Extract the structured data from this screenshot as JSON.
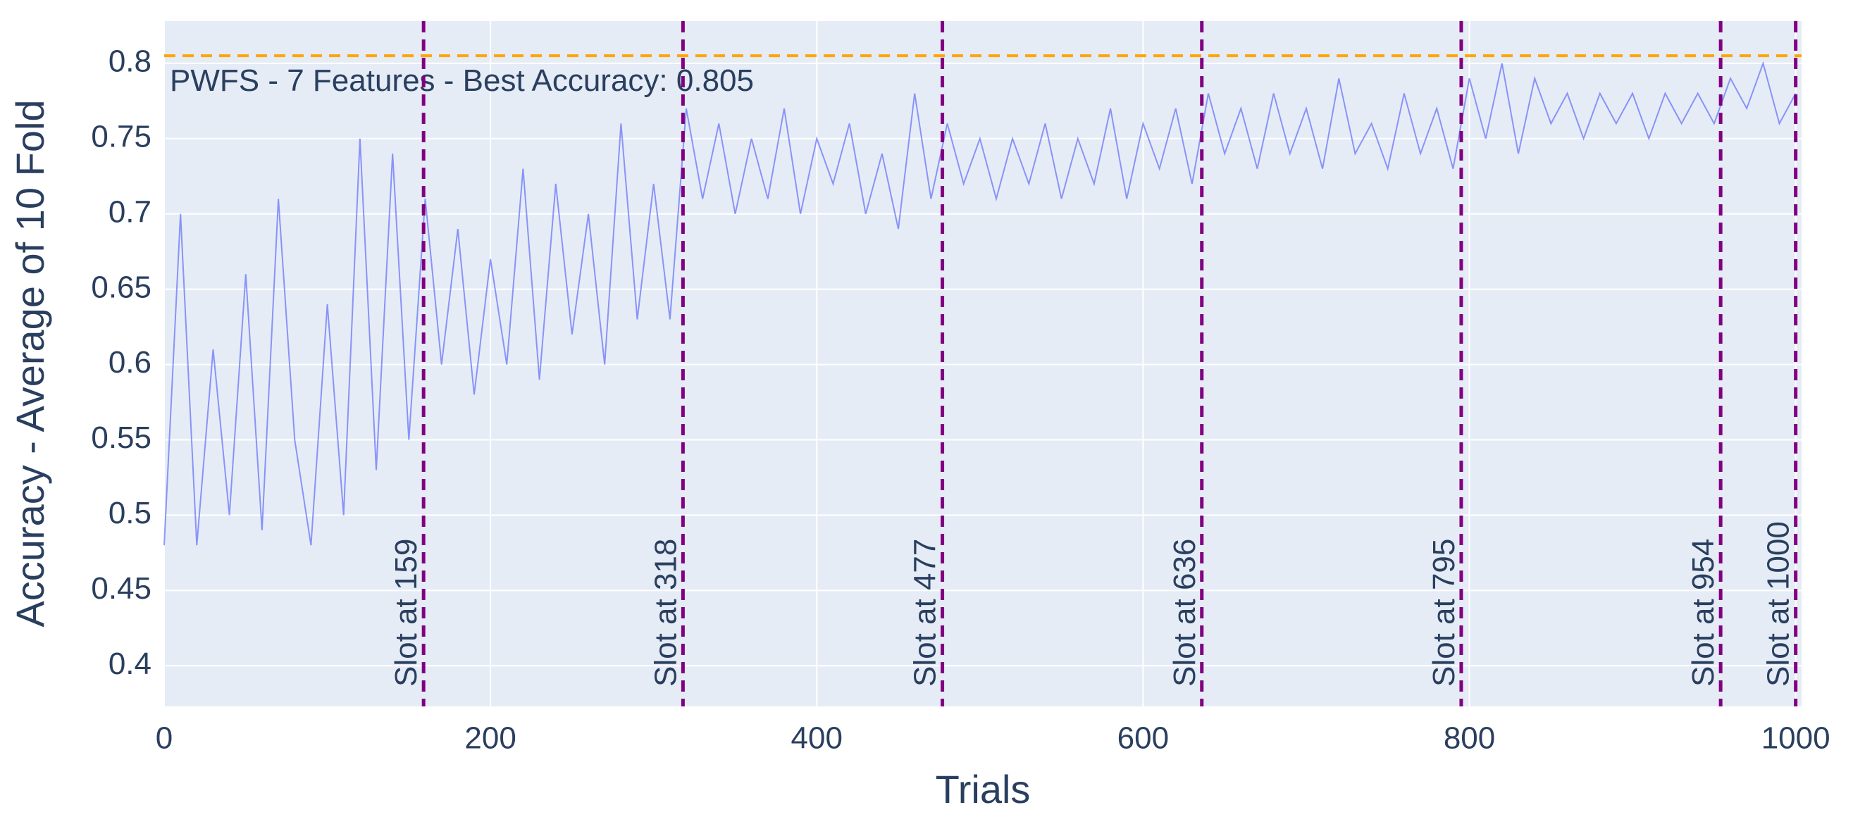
{
  "chart_data": {
    "type": "line",
    "xlabel": "Trials",
    "ylabel": "Accuracy - Average of 10 Fold",
    "annotation": "PWFS - 7 Features - Best Accuracy: 0.805",
    "x": [
      0,
      10,
      20,
      30,
      40,
      50,
      60,
      70,
      80,
      90,
      100,
      110,
      120,
      130,
      140,
      150,
      160,
      170,
      180,
      190,
      200,
      210,
      220,
      230,
      240,
      250,
      260,
      270,
      280,
      290,
      300,
      310,
      320,
      330,
      340,
      350,
      360,
      370,
      380,
      390,
      400,
      410,
      420,
      430,
      440,
      450,
      460,
      470,
      480,
      490,
      500,
      510,
      520,
      530,
      540,
      550,
      560,
      570,
      580,
      590,
      600,
      610,
      620,
      630,
      640,
      650,
      660,
      670,
      680,
      690,
      700,
      710,
      720,
      730,
      740,
      750,
      760,
      770,
      780,
      790,
      800,
      810,
      820,
      830,
      840,
      850,
      860,
      870,
      880,
      890,
      900,
      910,
      920,
      930,
      940,
      950,
      960,
      970,
      980,
      990,
      1000
    ],
    "series": [
      {
        "color": "#636efa",
        "values": [
          0.48,
          0.7,
          0.48,
          0.61,
          0.5,
          0.66,
          0.49,
          0.71,
          0.55,
          0.48,
          0.64,
          0.5,
          0.75,
          0.53,
          0.74,
          0.55,
          0.71,
          0.6,
          0.69,
          0.58,
          0.67,
          0.6,
          0.73,
          0.59,
          0.72,
          0.62,
          0.7,
          0.6,
          0.76,
          0.63,
          0.72,
          0.63,
          0.77,
          0.71,
          0.76,
          0.7,
          0.75,
          0.71,
          0.77,
          0.7,
          0.75,
          0.72,
          0.76,
          0.7,
          0.74,
          0.69,
          0.78,
          0.71,
          0.76,
          0.72,
          0.75,
          0.71,
          0.75,
          0.72,
          0.76,
          0.71,
          0.75,
          0.72,
          0.77,
          0.71,
          0.76,
          0.73,
          0.77,
          0.72,
          0.78,
          0.74,
          0.77,
          0.73,
          0.78,
          0.74,
          0.77,
          0.73,
          0.79,
          0.74,
          0.76,
          0.73,
          0.78,
          0.74,
          0.77,
          0.73,
          0.79,
          0.75,
          0.8,
          0.74,
          0.79,
          0.76,
          0.78,
          0.75,
          0.78,
          0.76,
          0.78,
          0.75,
          0.78,
          0.76,
          0.78,
          0.76,
          0.79,
          0.77,
          0.8,
          0.76,
          0.78
        ]
      }
    ],
    "xlim": [
      0,
      1003.6
    ],
    "ylim": [
      0.373,
      0.828
    ],
    "xticks": [
      0,
      200,
      400,
      600,
      800,
      1000
    ],
    "yticks": [
      0.4,
      0.45,
      0.5,
      0.55,
      0.6,
      0.65,
      0.7,
      0.75,
      0.8
    ],
    "grid": true,
    "hline": {
      "y": 0.805,
      "color": "#ffa500"
    },
    "vline_color": "#800080",
    "vlines": [
      {
        "x": 159,
        "label": "Slot at 159"
      },
      {
        "x": 318,
        "label": "Slot at 318"
      },
      {
        "x": 477,
        "label": "Slot at 477"
      },
      {
        "x": 636,
        "label": "Slot at 636"
      },
      {
        "x": 795,
        "label": "Slot at 795"
      },
      {
        "x": 954,
        "label": "Slot at 954"
      },
      {
        "x": 1000,
        "label": "Slot at 1000"
      }
    ]
  }
}
